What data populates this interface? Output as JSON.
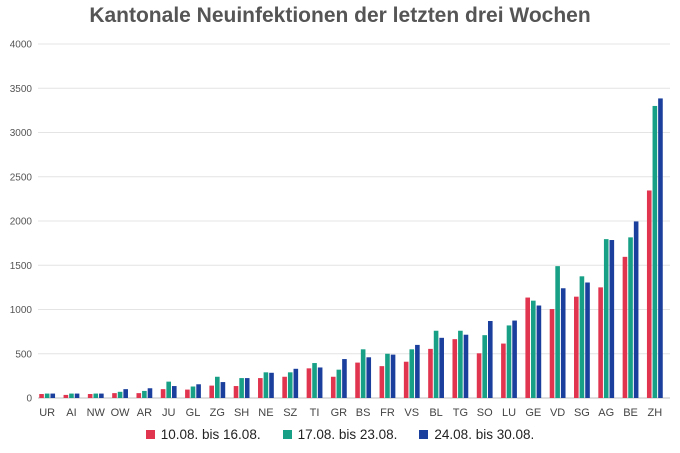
{
  "chart_data": {
    "type": "bar",
    "title": "Kantonale Neuinfektionen der letzten drei Wochen",
    "xlabel": "",
    "ylabel": "",
    "ylim": [
      0,
      4000
    ],
    "yticks": [
      "0",
      "500",
      "1000",
      "1500",
      "2000",
      "2500",
      "3000",
      "3500",
      "4000"
    ],
    "grid": true,
    "legend_position": "bottom",
    "categories": [
      "UR",
      "AI",
      "NW",
      "OW",
      "AR",
      "JU",
      "GL",
      "ZG",
      "SH",
      "NE",
      "SZ",
      "TI",
      "GR",
      "BS",
      "FR",
      "VS",
      "BL",
      "TG",
      "SO",
      "LU",
      "GE",
      "VD",
      "SG",
      "AG",
      "BE",
      "ZH"
    ],
    "series": [
      {
        "name": "10.08. bis 16.08.",
        "color": "#e0344f",
        "values": [
          45,
          35,
          45,
          55,
          55,
          100,
          95,
          140,
          135,
          225,
          240,
          335,
          240,
          400,
          360,
          410,
          555,
          665,
          505,
          615,
          1135,
          1005,
          1145,
          1250,
          1595,
          2345
        ]
      },
      {
        "name": "17.08. bis 23.08.",
        "color": "#17a085",
        "values": [
          50,
          50,
          50,
          70,
          80,
          185,
          130,
          240,
          225,
          290,
          290,
          395,
          320,
          550,
          500,
          550,
          760,
          760,
          710,
          820,
          1100,
          1490,
          1375,
          1795,
          1815,
          3300
        ]
      },
      {
        "name": "24.08. bis 30.08.",
        "color": "#1b3f9c",
        "values": [
          50,
          50,
          50,
          100,
          110,
          135,
          155,
          180,
          225,
          285,
          330,
          345,
          440,
          460,
          490,
          600,
          680,
          715,
          870,
          875,
          1045,
          1240,
          1305,
          1785,
          1995,
          3385
        ]
      }
    ]
  }
}
